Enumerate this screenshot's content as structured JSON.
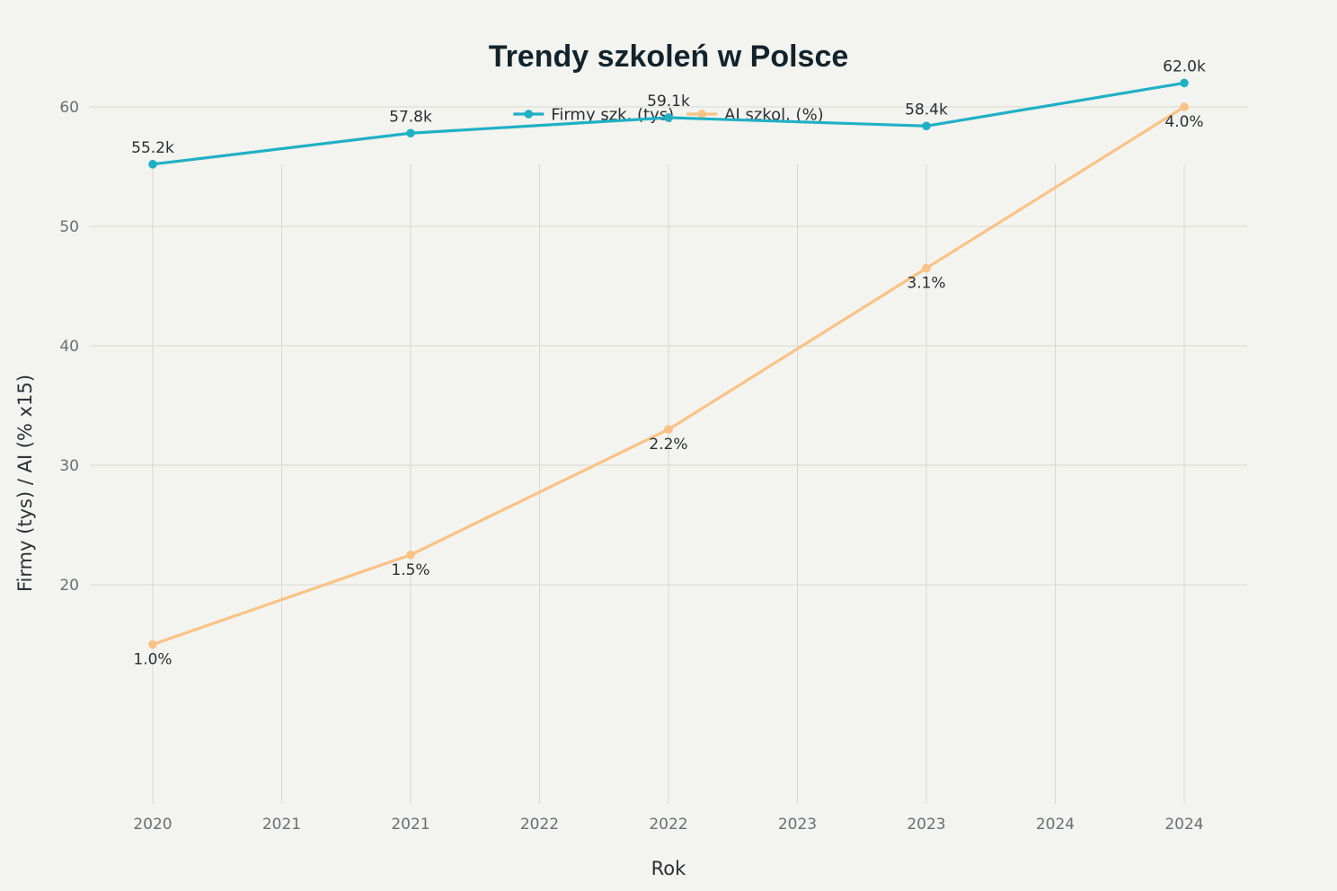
{
  "chart_data": {
    "type": "line",
    "title": "Trendy szkoleń w Polsce",
    "xlabel": "Rok",
    "ylabel": "Firmy (tys) / AI (% x15)",
    "x_tick_labels": [
      "2020",
      "2021",
      "2021",
      "2022",
      "2022",
      "2023",
      "2023",
      "2024",
      "2024"
    ],
    "x": [
      2020,
      2021,
      2022,
      2023,
      2024
    ],
    "ylim": [
      10,
      65
    ],
    "y_ticks": [
      20,
      30,
      40,
      50,
      60
    ],
    "grid": true,
    "legend_position": "top-center",
    "series": [
      {
        "name": "Firmy szk. (tys)",
        "color": "#1fb0c4",
        "values": [
          55.2,
          57.8,
          59.1,
          58.4,
          62.0
        ],
        "labels": [
          "55.2k",
          "57.8k",
          "59.1k",
          "58.4k",
          "62.0k"
        ],
        "label_position": "above"
      },
      {
        "name": "AI szkol. (%)",
        "color": "#f9c386",
        "values": [
          15.0,
          22.5,
          33.0,
          46.5,
          60.0
        ],
        "labels": [
          "1.0%",
          "1.5%",
          "2.2%",
          "3.1%",
          "4.0%"
        ],
        "label_position": "below"
      }
    ]
  }
}
